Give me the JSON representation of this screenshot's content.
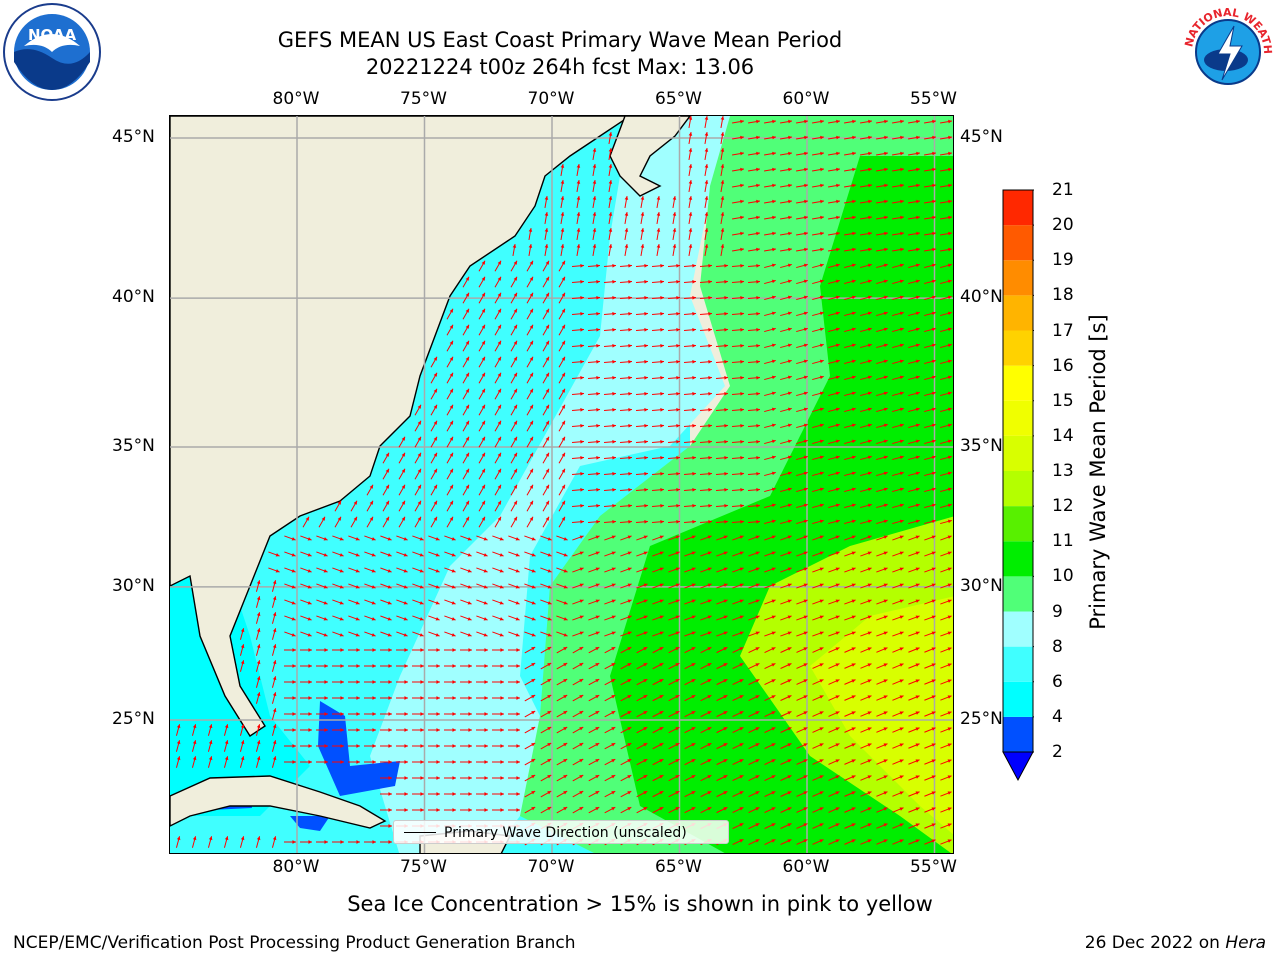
{
  "title": {
    "line1": "GEFS MEAN US East Coast Primary Wave Mean Period",
    "line2": "20221224 t00z 264h fcst   Max: 13.06"
  },
  "logos": {
    "noaa_text": "NOAA",
    "nws_text": "NATIONAL WEATHER SERVICE"
  },
  "map": {
    "lon_range": [
      -85,
      -54
    ],
    "lat_range": [
      20.5,
      46
    ],
    "lon_ticks": [
      "80°W",
      "75°W",
      "70°W",
      "65°W",
      "60°W",
      "55°W"
    ],
    "lon_values": [
      -80,
      -75,
      -70,
      -65,
      -60,
      -55
    ],
    "lat_ticks": [
      "25°N",
      "30°N",
      "35°N",
      "40°N",
      "45°N"
    ],
    "lat_values": [
      25,
      30,
      35,
      40,
      45
    ],
    "grid": true,
    "land_color": "#f0eedc",
    "arrow_color": "#ff0000"
  },
  "legend": {
    "label": "Primary Wave Direction (unscaled)",
    "placement": "lower-center"
  },
  "colorbar": {
    "label": "Primary Wave Mean Period [s]",
    "ticks": [
      "2",
      "4",
      "6",
      "8",
      "9",
      "10",
      "11",
      "12",
      "13",
      "14",
      "15",
      "16",
      "17",
      "18",
      "19",
      "20",
      "21"
    ],
    "colors": [
      "#0050ff",
      "#00ffff",
      "#40ffff",
      "#a0ffff",
      "#50ff78",
      "#00ee00",
      "#58f000",
      "#b4ff00",
      "#d8ff00",
      "#f0ff00",
      "#ffff00",
      "#ffd200",
      "#ffb400",
      "#ff8c00",
      "#ff5a00",
      "#ff2800",
      "#ff0000"
    ],
    "under_color": "#0000ff"
  },
  "subtitle": "Sea Ice Concentration > 15% is shown in pink to yellow",
  "footer": {
    "left": "NCEP/EMC/Verification Post Processing Product Generation Branch",
    "right_prefix": "26 Dec 2022 on ",
    "right_host": "Hera"
  }
}
